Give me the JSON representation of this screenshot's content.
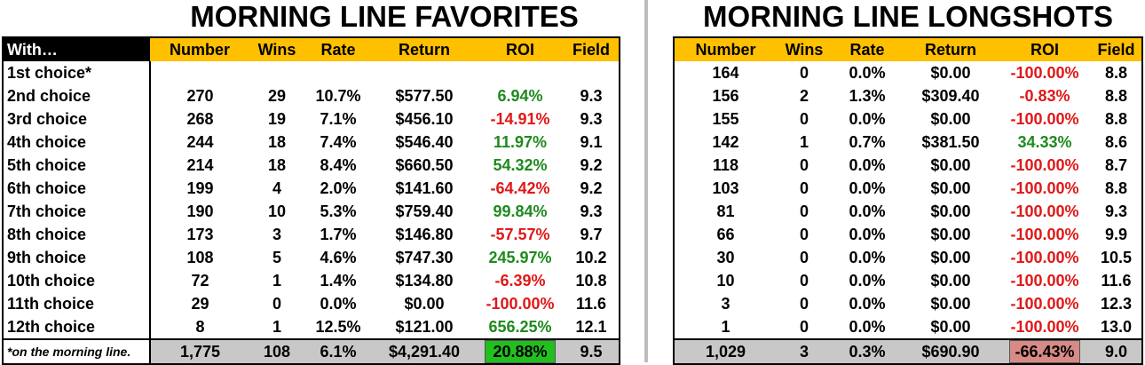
{
  "title_left": "MORNING LINE FAVORITES",
  "title_right": "MORNING LINE LONGSHOTS",
  "colors": {
    "header_bg": "#ffc000",
    "positive": "#1e8a1e",
    "negative": "#e01818",
    "total_row_bg": "#c8c8c8",
    "left_total_roi_bg": "#22c01f",
    "right_total_roi_bg": "#d88a86"
  },
  "chart_data": [
    {
      "type": "table",
      "title": "MORNING LINE FAVORITES",
      "columns": [
        "With…",
        "Number",
        "Wins",
        "Rate",
        "Return",
        "ROI",
        "Field"
      ],
      "rows": [
        {
          "with": "1st choice*",
          "number": "",
          "wins": "",
          "rate": "",
          "return": "",
          "roi": "",
          "roi_sign": "",
          "field": ""
        },
        {
          "with": "2nd choice",
          "number": "270",
          "wins": "29",
          "rate": "10.7%",
          "return": "$577.50",
          "roi": "6.94%",
          "roi_sign": "pos",
          "field": "9.3"
        },
        {
          "with": "3rd choice",
          "number": "268",
          "wins": "19",
          "rate": "7.1%",
          "return": "$456.10",
          "roi": "-14.91%",
          "roi_sign": "neg",
          "field": "9.3"
        },
        {
          "with": "4th choice",
          "number": "244",
          "wins": "18",
          "rate": "7.4%",
          "return": "$546.40",
          "roi": "11.97%",
          "roi_sign": "pos",
          "field": "9.1"
        },
        {
          "with": "5th choice",
          "number": "214",
          "wins": "18",
          "rate": "8.4%",
          "return": "$660.50",
          "roi": "54.32%",
          "roi_sign": "pos",
          "field": "9.2"
        },
        {
          "with": "6th choice",
          "number": "199",
          "wins": "4",
          "rate": "2.0%",
          "return": "$141.60",
          "roi": "-64.42%",
          "roi_sign": "neg",
          "field": "9.2"
        },
        {
          "with": "7th choice",
          "number": "190",
          "wins": "10",
          "rate": "5.3%",
          "return": "$759.40",
          "roi": "99.84%",
          "roi_sign": "pos",
          "field": "9.3"
        },
        {
          "with": "8th choice",
          "number": "173",
          "wins": "3",
          "rate": "1.7%",
          "return": "$146.80",
          "roi": "-57.57%",
          "roi_sign": "neg",
          "field": "9.7"
        },
        {
          "with": "9th choice",
          "number": "108",
          "wins": "5",
          "rate": "4.6%",
          "return": "$747.30",
          "roi": "245.97%",
          "roi_sign": "pos",
          "field": "10.2"
        },
        {
          "with": "10th choice",
          "number": "72",
          "wins": "1",
          "rate": "1.4%",
          "return": "$134.80",
          "roi": "-6.39%",
          "roi_sign": "neg",
          "field": "10.8"
        },
        {
          "with": "11th choice",
          "number": "29",
          "wins": "0",
          "rate": "0.0%",
          "return": "$0.00",
          "roi": "-100.00%",
          "roi_sign": "neg",
          "field": "11.6"
        },
        {
          "with": "12th choice",
          "number": "8",
          "wins": "1",
          "rate": "12.5%",
          "return": "$121.00",
          "roi": "656.25%",
          "roi_sign": "pos",
          "field": "12.1"
        }
      ],
      "total": {
        "with": "*on the morning line.",
        "number": "1,775",
        "wins": "108",
        "rate": "6.1%",
        "return": "$4,291.40",
        "roi": "20.88%",
        "field": "9.5"
      }
    },
    {
      "type": "table",
      "title": "MORNING LINE LONGSHOTS",
      "columns": [
        "Number",
        "Wins",
        "Rate",
        "Return",
        "ROI",
        "Field"
      ],
      "rows": [
        {
          "number": "164",
          "wins": "0",
          "rate": "0.0%",
          "return": "$0.00",
          "roi": "-100.00%",
          "roi_sign": "neg",
          "field": "8.8"
        },
        {
          "number": "156",
          "wins": "2",
          "rate": "1.3%",
          "return": "$309.40",
          "roi": "-0.83%",
          "roi_sign": "neg",
          "field": "8.8"
        },
        {
          "number": "155",
          "wins": "0",
          "rate": "0.0%",
          "return": "$0.00",
          "roi": "-100.00%",
          "roi_sign": "neg",
          "field": "8.8"
        },
        {
          "number": "142",
          "wins": "1",
          "rate": "0.7%",
          "return": "$381.50",
          "roi": "34.33%",
          "roi_sign": "pos",
          "field": "8.6"
        },
        {
          "number": "118",
          "wins": "0",
          "rate": "0.0%",
          "return": "$0.00",
          "roi": "-100.00%",
          "roi_sign": "neg",
          "field": "8.7"
        },
        {
          "number": "103",
          "wins": "0",
          "rate": "0.0%",
          "return": "$0.00",
          "roi": "-100.00%",
          "roi_sign": "neg",
          "field": "8.8"
        },
        {
          "number": "81",
          "wins": "0",
          "rate": "0.0%",
          "return": "$0.00",
          "roi": "-100.00%",
          "roi_sign": "neg",
          "field": "9.3"
        },
        {
          "number": "66",
          "wins": "0",
          "rate": "0.0%",
          "return": "$0.00",
          "roi": "-100.00%",
          "roi_sign": "neg",
          "field": "9.9"
        },
        {
          "number": "30",
          "wins": "0",
          "rate": "0.0%",
          "return": "$0.00",
          "roi": "-100.00%",
          "roi_sign": "neg",
          "field": "10.5"
        },
        {
          "number": "10",
          "wins": "0",
          "rate": "0.0%",
          "return": "$0.00",
          "roi": "-100.00%",
          "roi_sign": "neg",
          "field": "11.6"
        },
        {
          "number": "3",
          "wins": "0",
          "rate": "0.0%",
          "return": "$0.00",
          "roi": "-100.00%",
          "roi_sign": "neg",
          "field": "12.3"
        },
        {
          "number": "1",
          "wins": "0",
          "rate": "0.0%",
          "return": "$0.00",
          "roi": "-100.00%",
          "roi_sign": "neg",
          "field": "13.0"
        }
      ],
      "total": {
        "number": "1,029",
        "wins": "3",
        "rate": "0.3%",
        "return": "$690.90",
        "roi": "-66.43%",
        "field": "9.0"
      }
    }
  ]
}
